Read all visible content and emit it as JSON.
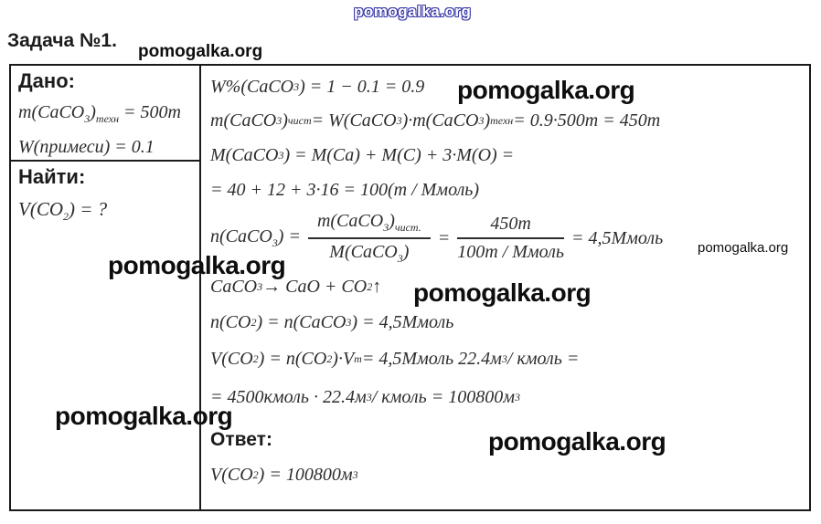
{
  "watermarks": {
    "text": "pomogalka.org"
  },
  "header": {
    "title": "Задача №1."
  },
  "given": {
    "label": "Дано:",
    "mass": "m(CaCO_{3})_{техн} = 500т",
    "impurity": "W(примеси) = 0.1"
  },
  "find": {
    "label": "Найти:",
    "target": "V(CO_{2}) = ?"
  },
  "solution": {
    "line1": "W%(CaCO_{3}) = 1 − 0.1 = 0.9",
    "line2": "m(CaCO_{3})_{чист} = W(CaCO_{3})·m(CaCO_{3})_{техн} = 0.9·500т = 450т",
    "line3": "M(CaCO_{3}) = M(Ca) + M(C) + 3·M(O) =",
    "line4": "= 40 + 12 + 3·16 = 100(т / Ммоль)",
    "frac_line": {
      "lhs": "n(CaCO_{3}) =",
      "f1_num": "m(CaCO_{3})_{чист.}",
      "f1_den": "M(CaCO_{3})",
      "equals": "=",
      "f2_num": "450т",
      "f2_den": "100т / Ммоль",
      "rhs": "= 4,5Ммоль"
    },
    "line6": "CaCO_{3} → CaO + CO_{2}↑",
    "line7": "n(CO_{2}) = n(CaCO_{3}) = 4,5Ммоль",
    "line8": "V(CO_{2}) = n(CO_{2})·V_{m} = 4,5Ммоль 22.4м^{3} / кмоль =",
    "line9": "= 4500кмоль · 22.4м^{3} / кмоль = 100800м^{3}",
    "answer_label": "Ответ:",
    "answer": "V(CO_{2}) = 100800м^{3}"
  }
}
